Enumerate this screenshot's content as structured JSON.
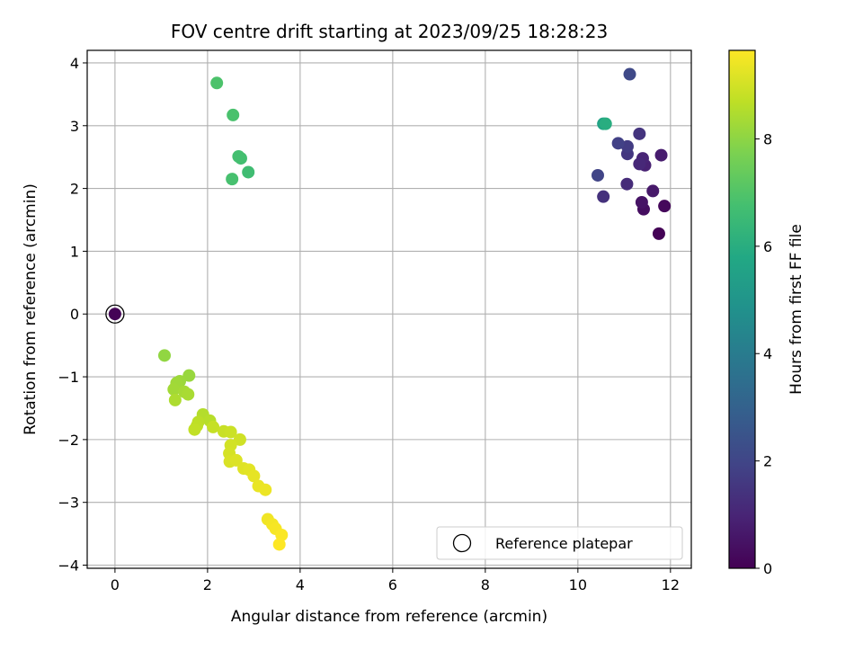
{
  "chart_data": {
    "type": "scatter",
    "title": "FOV centre drift starting at 2023/09/25 18:28:23",
    "xlabel": "Angular distance from reference (arcmin)",
    "ylabel": "Rotation from reference (arcmin)",
    "xlim": [
      -0.6,
      12.45
    ],
    "ylim": [
      -4.05,
      4.2
    ],
    "xticks": [
      0,
      2,
      4,
      6,
      8,
      10,
      12
    ],
    "yticks": [
      -4,
      -3,
      -2,
      -1,
      0,
      1,
      2,
      3,
      4
    ],
    "xtick_labels": [
      "0",
      "2",
      "4",
      "6",
      "8",
      "10",
      "12"
    ],
    "ytick_labels": [
      "−4",
      "−3",
      "−2",
      "−1",
      "0",
      "1",
      "2",
      "3",
      "4"
    ],
    "grid": true,
    "colormap": "viridis",
    "colorbar": {
      "label": "Hours from first FF file",
      "range": [
        0,
        9.65
      ],
      "ticks": [
        0,
        2,
        4,
        6,
        8
      ],
      "tick_labels": [
        "0",
        "2",
        "4",
        "6",
        "8"
      ]
    },
    "legend": {
      "location": "lower-right",
      "entries": [
        {
          "label": "Reference platepar",
          "marker": "open-circle"
        }
      ]
    },
    "reference_point": {
      "x": 0,
      "y": 0
    },
    "points": [
      {
        "x": 0.0,
        "y": 0.0,
        "hours": 0.05
      },
      {
        "x": 11.75,
        "y": 1.28,
        "hours": 0.05
      },
      {
        "x": 11.87,
        "y": 1.72,
        "hours": 0.2
      },
      {
        "x": 11.42,
        "y": 1.67,
        "hours": 0.35
      },
      {
        "x": 11.38,
        "y": 1.78,
        "hours": 0.5
      },
      {
        "x": 11.62,
        "y": 1.96,
        "hours": 0.65
      },
      {
        "x": 11.8,
        "y": 2.53,
        "hours": 0.75
      },
      {
        "x": 11.45,
        "y": 2.37,
        "hours": 0.9
      },
      {
        "x": 11.4,
        "y": 2.48,
        "hours": 1.0
      },
      {
        "x": 11.33,
        "y": 2.39,
        "hours": 1.1
      },
      {
        "x": 11.06,
        "y": 2.07,
        "hours": 1.2
      },
      {
        "x": 10.55,
        "y": 1.87,
        "hours": 1.35
      },
      {
        "x": 11.33,
        "y": 2.87,
        "hours": 1.45
      },
      {
        "x": 11.07,
        "y": 2.55,
        "hours": 1.55
      },
      {
        "x": 11.07,
        "y": 2.67,
        "hours": 1.7
      },
      {
        "x": 10.87,
        "y": 2.72,
        "hours": 1.85
      },
      {
        "x": 10.43,
        "y": 2.21,
        "hours": 1.95
      },
      {
        "x": 11.12,
        "y": 3.82,
        "hours": 2.1
      },
      {
        "x": 10.55,
        "y": 3.03,
        "hours": 5.6
      },
      {
        "x": 10.6,
        "y": 3.03,
        "hours": 6.0
      },
      {
        "x": 2.88,
        "y": 2.26,
        "hours": 6.65
      },
      {
        "x": 2.72,
        "y": 2.48,
        "hours": 6.7
      },
      {
        "x": 2.67,
        "y": 2.51,
        "hours": 6.75
      },
      {
        "x": 2.53,
        "y": 2.15,
        "hours": 6.8
      },
      {
        "x": 2.55,
        "y": 3.17,
        "hours": 6.85
      },
      {
        "x": 2.2,
        "y": 3.68,
        "hours": 6.9
      },
      {
        "x": 1.07,
        "y": -0.66,
        "hours": 8.05
      },
      {
        "x": 1.6,
        "y": -0.98,
        "hours": 8.15
      },
      {
        "x": 1.4,
        "y": -1.07,
        "hours": 8.2
      },
      {
        "x": 1.33,
        "y": -1.1,
        "hours": 8.25
      },
      {
        "x": 1.27,
        "y": -1.2,
        "hours": 8.3
      },
      {
        "x": 1.5,
        "y": -1.24,
        "hours": 8.35
      },
      {
        "x": 1.58,
        "y": -1.28,
        "hours": 8.4
      },
      {
        "x": 1.3,
        "y": -1.37,
        "hours": 8.45
      },
      {
        "x": 1.9,
        "y": -1.6,
        "hours": 8.55
      },
      {
        "x": 2.05,
        "y": -1.7,
        "hours": 8.6
      },
      {
        "x": 1.8,
        "y": -1.72,
        "hours": 8.65
      },
      {
        "x": 1.77,
        "y": -1.78,
        "hours": 8.7
      },
      {
        "x": 1.72,
        "y": -1.84,
        "hours": 8.75
      },
      {
        "x": 2.12,
        "y": -1.8,
        "hours": 8.8
      },
      {
        "x": 2.35,
        "y": -1.87,
        "hours": 8.85
      },
      {
        "x": 2.5,
        "y": -1.88,
        "hours": 8.9
      },
      {
        "x": 2.7,
        "y": -2.0,
        "hours": 8.95
      },
      {
        "x": 2.5,
        "y": -2.09,
        "hours": 9.0
      },
      {
        "x": 2.47,
        "y": -2.22,
        "hours": 9.05
      },
      {
        "x": 2.48,
        "y": -2.35,
        "hours": 9.1
      },
      {
        "x": 2.62,
        "y": -2.33,
        "hours": 9.15
      },
      {
        "x": 2.78,
        "y": -2.46,
        "hours": 9.2
      },
      {
        "x": 2.9,
        "y": -2.48,
        "hours": 9.25
      },
      {
        "x": 3.0,
        "y": -2.58,
        "hours": 9.3
      },
      {
        "x": 3.1,
        "y": -2.74,
        "hours": 9.35
      },
      {
        "x": 3.25,
        "y": -2.8,
        "hours": 9.4
      },
      {
        "x": 3.3,
        "y": -3.27,
        "hours": 9.45
      },
      {
        "x": 3.4,
        "y": -3.35,
        "hours": 9.5
      },
      {
        "x": 3.47,
        "y": -3.42,
        "hours": 9.55
      },
      {
        "x": 3.6,
        "y": -3.52,
        "hours": 9.6
      },
      {
        "x": 3.55,
        "y": -3.67,
        "hours": 9.65
      }
    ]
  }
}
